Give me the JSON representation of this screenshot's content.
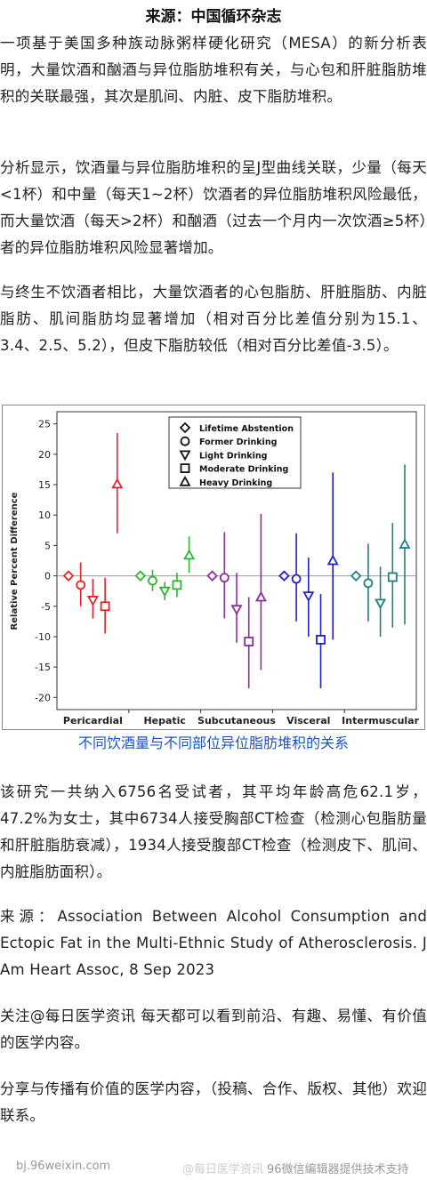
{
  "header": {
    "source_title": "来源：中国循环杂志"
  },
  "paragraphs": {
    "p1": "一项基于美国多种族动脉粥样硬化研究（MESA）的新分析表明，大量饮酒和酗酒与异位脂肪堆积有关，与心包和肝脏脂肪堆积的关联最强，其次是肌间、内脏、皮下脂肪堆积。",
    "p2": "分析显示，饮酒量与异位脂肪堆积的呈J型曲线关联，少量（每天<1杯）和中量（每天1~2杯）饮酒者的异位脂肪堆积风险最低，而大量饮酒（每天>2杯）和酗酒（过去一个月内一次饮酒≥5杯）者的异位脂肪堆积风险显著增加。",
    "p3": "与终生不饮酒者相比，大量饮酒者的心包脂肪、肝脏脂肪、内脏脂肪、肌间脂肪均显著增加（相对百分比差值分别为15.1、3.4、2.5、5.2），但皮下脂肪较低（相对百分比差值-3.5）。",
    "p4": "该研究一共纳入6756名受试者，其平均年龄高危62.1岁，47.2%为女士，其中6734人接受胸部CT检查（检测心包脂肪量和肝脏脂肪衰减），1934人接受腹部CT检查（检测皮下、肌间、内脏脂肪面积）。",
    "p5": "来源：Association Between Alcohol Consumption and Ectopic Fat in the Multi-Ethnic Study of Atherosclerosis. J Am Heart Assoc, 8 Sep 2023",
    "p6": "关注@每日医学资讯 每天都可以看到前沿、有趣、易懂、有价值的医学内容。",
    "p7": "分享与传播有价值的医学内容，（投稿、合作、版权、其他）欢迎联系。"
  },
  "figure_caption": "不同饮酒量与不同部位异位脂肪堆积的关系",
  "footer": {
    "left": "bj.96weixin.com",
    "watermark": "@每日医学资讯",
    "right": "96微信编辑器提供技术支持"
  },
  "chart_data": {
    "type": "scatter",
    "title": "",
    "xlabel": "",
    "ylabel": "Relative Percent Difference",
    "ylim": [
      -22,
      27
    ],
    "yticks": [
      25,
      20,
      15,
      10,
      5,
      0,
      -5,
      -10,
      -15,
      -20
    ],
    "categories": [
      "Pericardial",
      "Hepatic",
      "Subcutaneous",
      "Visceral",
      "Intermuscular"
    ],
    "legend_position": "top-center",
    "series": [
      {
        "name": "Lifetime Abstention",
        "marker": "diamond"
      },
      {
        "name": "Former Drinking",
        "marker": "circle"
      },
      {
        "name": "Light Drinking",
        "marker": "triangle-down"
      },
      {
        "name": "Moderate Drinking",
        "marker": "square"
      },
      {
        "name": "Heavy Drinking",
        "marker": "triangle-up"
      }
    ],
    "groups": [
      {
        "category": "Pericardial",
        "color": "#e8202a",
        "points": [
          {
            "est": 0,
            "lo": 0,
            "hi": 0
          },
          {
            "est": -1.5,
            "lo": -5,
            "hi": 2.2
          },
          {
            "est": -4,
            "lo": -7,
            "hi": -0.5
          },
          {
            "est": -5,
            "lo": -9.5,
            "hi": -0.3
          },
          {
            "est": 15.1,
            "lo": 7,
            "hi": 23.5
          }
        ]
      },
      {
        "category": "Hepatic",
        "color": "#2db42d",
        "points": [
          {
            "est": 0,
            "lo": 0,
            "hi": 0
          },
          {
            "est": -0.8,
            "lo": -2.5,
            "hi": 1
          },
          {
            "est": -2.5,
            "lo": -4,
            "hi": -1
          },
          {
            "est": -1.5,
            "lo": -3.5,
            "hi": 0.5
          },
          {
            "est": 3.4,
            "lo": 0.5,
            "hi": 6.5
          }
        ]
      },
      {
        "category": "Subcutaneous",
        "color": "#8a2d9e",
        "points": [
          {
            "est": 0,
            "lo": 0,
            "hi": 0
          },
          {
            "est": -0.3,
            "lo": -7,
            "hi": 7.2
          },
          {
            "est": -5.5,
            "lo": -11,
            "hi": 0.5
          },
          {
            "est": -10.8,
            "lo": -18.5,
            "hi": -3.5
          },
          {
            "est": -3.5,
            "lo": -15.5,
            "hi": 10.2
          }
        ]
      },
      {
        "category": "Visceral",
        "color": "#2020c8",
        "points": [
          {
            "est": 0,
            "lo": 0,
            "hi": 0
          },
          {
            "est": -0.5,
            "lo": -7.5,
            "hi": 7
          },
          {
            "est": -3.3,
            "lo": -10,
            "hi": 3
          },
          {
            "est": -10.5,
            "lo": -18.5,
            "hi": -3
          },
          {
            "est": 2.5,
            "lo": -10.5,
            "hi": 17
          }
        ]
      },
      {
        "category": "Intermuscular",
        "color": "#1f8080",
        "points": [
          {
            "est": 0,
            "lo": 0,
            "hi": 0
          },
          {
            "est": -1.2,
            "lo": -7.5,
            "hi": 5.3
          },
          {
            "est": -4.5,
            "lo": -10,
            "hi": 1.5
          },
          {
            "est": -0.2,
            "lo": -8.5,
            "hi": 8.7
          },
          {
            "est": 5.2,
            "lo": -8,
            "hi": 18.3
          }
        ]
      }
    ]
  }
}
